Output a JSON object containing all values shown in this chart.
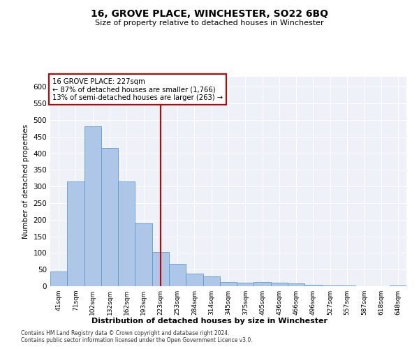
{
  "title": "16, GROVE PLACE, WINCHESTER, SO22 6BQ",
  "subtitle": "Size of property relative to detached houses in Winchester",
  "xlabel": "Distribution of detached houses by size in Winchester",
  "ylabel": "Number of detached properties",
  "categories": [
    "41sqm",
    "71sqm",
    "102sqm",
    "132sqm",
    "162sqm",
    "193sqm",
    "223sqm",
    "253sqm",
    "284sqm",
    "314sqm",
    "345sqm",
    "375sqm",
    "405sqm",
    "436sqm",
    "466sqm",
    "496sqm",
    "527sqm",
    "557sqm",
    "587sqm",
    "618sqm",
    "648sqm"
  ],
  "values": [
    45,
    315,
    480,
    415,
    315,
    190,
    103,
    67,
    38,
    30,
    13,
    10,
    13,
    10,
    8,
    5,
    3,
    2,
    1,
    0,
    2
  ],
  "bar_color": "#aec6e8",
  "bar_edge_color": "#5b9bd5",
  "property_line_x": 6,
  "annotation_line1": "16 GROVE PLACE: 227sqm",
  "annotation_line2": "← 87% of detached houses are smaller (1,766)",
  "annotation_line3": "13% of semi-detached houses are larger (263) →",
  "vline_color": "#cc0000",
  "ylim": [
    0,
    630
  ],
  "yticks": [
    0,
    50,
    100,
    150,
    200,
    250,
    300,
    350,
    400,
    450,
    500,
    550,
    600
  ],
  "background_color": "#eef2f8",
  "footer1": "Contains HM Land Registry data © Crown copyright and database right 2024.",
  "footer2": "Contains public sector information licensed under the Open Government Licence v3.0."
}
